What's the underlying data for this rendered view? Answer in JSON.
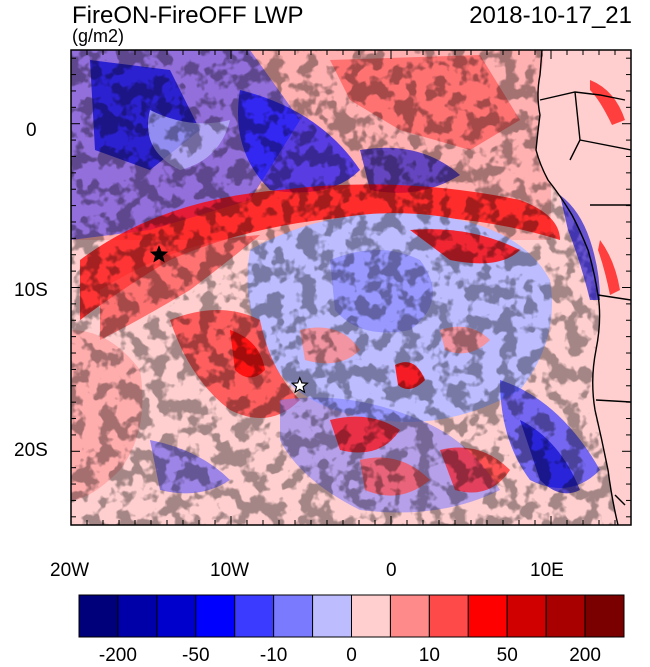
{
  "header": {
    "title": "FireON-FireOFF LWP",
    "datetime": "2018-10-17_21",
    "units": "(g/m2)"
  },
  "map": {
    "lon_range": [
      -20,
      15
    ],
    "lat_range": [
      -24.5,
      4.5
    ],
    "x_tick_labels": [
      "20W",
      "10W",
      "0",
      "10E"
    ],
    "y_tick_labels": [
      "0",
      "10S",
      "20S"
    ],
    "markers": [
      {
        "type": "star",
        "lon": -14.5,
        "lat": -8,
        "fill": "#000000"
      },
      {
        "type": "star",
        "lon": -5.7,
        "lat": -16,
        "fill": "#ffffff"
      }
    ],
    "land_color": "#ffcfcf"
  },
  "colorbar": {
    "colors": [
      "#00007a",
      "#0000a8",
      "#0000cc",
      "#0000ff",
      "#3b3bff",
      "#7a7aff",
      "#bcbcff",
      "#ffcfcf",
      "#ff8a8a",
      "#ff4a4a",
      "#ff0000",
      "#d00000",
      "#a80000",
      "#7a0000"
    ],
    "labels": [
      {
        "text": "-200",
        "index": 1
      },
      {
        "text": "-50",
        "index": 3
      },
      {
        "text": "-10",
        "index": 5
      },
      {
        "text": "0",
        "index": 7
      },
      {
        "text": "10",
        "index": 9
      },
      {
        "text": "50",
        "index": 11
      },
      {
        "text": "200",
        "index": 13
      }
    ]
  }
}
